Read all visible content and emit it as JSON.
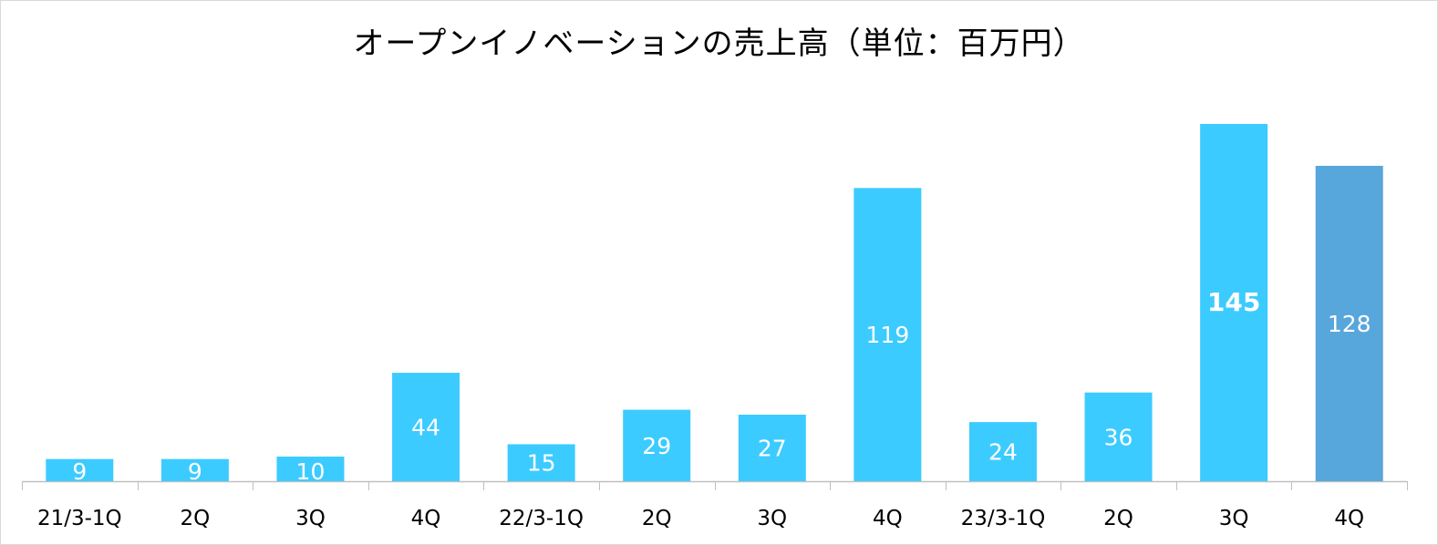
{
  "chart_data": {
    "type": "bar",
    "title": "オープンイノベーションの売上高（単位：百万円）",
    "xlabel": "",
    "ylabel": "",
    "categories": [
      "21/3-1Q",
      "2Q",
      "3Q",
      "4Q",
      "22/3-1Q",
      "2Q",
      "3Q",
      "4Q",
      "23/3-1Q",
      "2Q",
      "3Q",
      "4Q"
    ],
    "values": [
      9,
      9,
      10,
      44,
      15,
      29,
      27,
      119,
      24,
      36,
      145,
      128
    ],
    "ylim": [
      0,
      150
    ],
    "grid": false,
    "legend": "none",
    "colors": {
      "bar": "#3ccbff",
      "highlight_bar": "#57a6dc",
      "axis": "#bfbfbf",
      "data_label": "#ffffff"
    },
    "highlight_index": 11,
    "bold_label_index": 10
  }
}
